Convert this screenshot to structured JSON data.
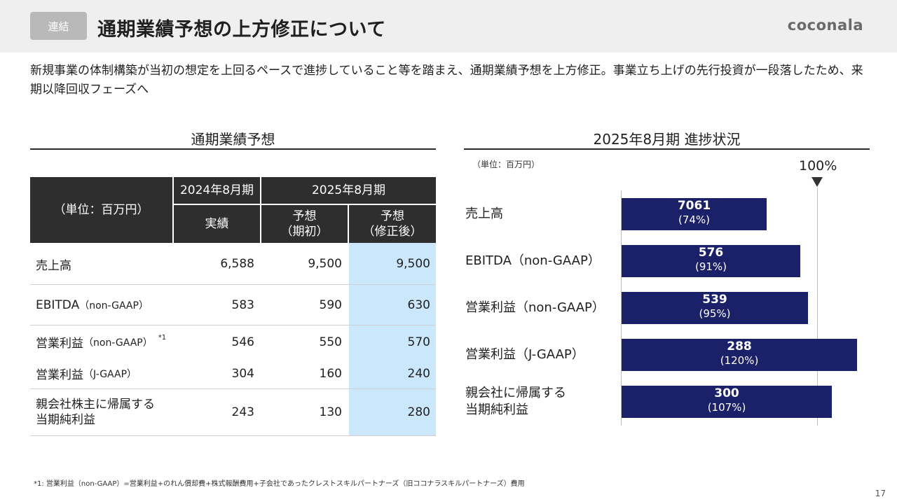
{
  "header": {
    "tag": "連結",
    "title": "通期業績予想の上方修正について",
    "logo": "coconala"
  },
  "lead": "新規事業の体制構築が当初の想定を上回るペースで進捗していること等を踏まえ、通期業績予想を上方修正。事業立ち上げの先行投資が一段落したため、来期以降回収フェーズへ",
  "forecast": {
    "title": "通期業績予想",
    "unit_header": "（単位：百万円）",
    "col_fy2024": "2024年8月期",
    "col_fy2025": "2025年8月期",
    "sub_actual": "実績",
    "sub_initial_1": "予想",
    "sub_initial_2": "（期初）",
    "sub_revised_1": "予想",
    "sub_revised_2": "（修正後）",
    "rows": [
      {
        "label": "売上高",
        "label_small": "",
        "sup": "",
        "actual": "6,588",
        "initial": "9,500",
        "revised": "9,500"
      },
      {
        "label": "EBITDA",
        "label_small": "（non-GAAP）",
        "sup": "",
        "actual": "583",
        "initial": "590",
        "revised": "630"
      },
      {
        "label": "営業利益",
        "label_small": "（non-GAAP）",
        "sup": "*1",
        "actual": "546",
        "initial": "550",
        "revised": "570"
      },
      {
        "label": "営業利益",
        "label_small": "（J-GAAP）",
        "sup": "",
        "actual": "304",
        "initial": "160",
        "revised": "240"
      },
      {
        "label": "親会社株主に帰属する",
        "label_line2": "当期純利益",
        "actual": "243",
        "initial": "130",
        "revised": "280"
      }
    ]
  },
  "progress": {
    "title": "2025年8月期 進捗状況",
    "unit": "（単位：百万円）",
    "marker_label": "100%"
  },
  "chart_data": {
    "type": "bar",
    "orientation": "horizontal",
    "categories": [
      "売上高",
      "EBITDA（non-GAAP）",
      "営業利益（non-GAAP）",
      "営業利益（J-GAAP）",
      "親会社に帰属する 当期純利益"
    ],
    "values": [
      7061,
      576,
      539,
      288,
      300
    ],
    "progress_percent": [
      74,
      91,
      95,
      120,
      107
    ],
    "value_labels": [
      "7061",
      "576",
      "539",
      "288",
      "300"
    ],
    "percent_labels": [
      "(74%)",
      "(91%)",
      "(95%)",
      "(120%)",
      "(107%)"
    ],
    "reference_line": 100,
    "reference_label": "100%",
    "bar_color": "#1b2169"
  },
  "chart_labels": [
    {
      "line1": "売上高",
      "line2": ""
    },
    {
      "line1": "EBITDA（non-GAAP）",
      "line2": ""
    },
    {
      "line1": "営業利益（non-GAAP）",
      "line2": ""
    },
    {
      "line1": "営業利益（J-GAAP）",
      "line2": ""
    },
    {
      "line1": "親会社に帰属する",
      "line2": "当期純利益"
    }
  ],
  "footnote": "*1: 営業利益（non-GAAP）=営業利益+のれん償却費+株式報酬費用+子会社であったクレストスキルパートナーズ（旧ココナラスキルパートナーズ）費用",
  "page_number": "17",
  "colors": {
    "header_bg": "#efefef",
    "tag_bg": "#b9b9b9",
    "table_header_bg": "#2e2e2e",
    "highlight": "#cbe7fb",
    "bar": "#1b2169"
  }
}
